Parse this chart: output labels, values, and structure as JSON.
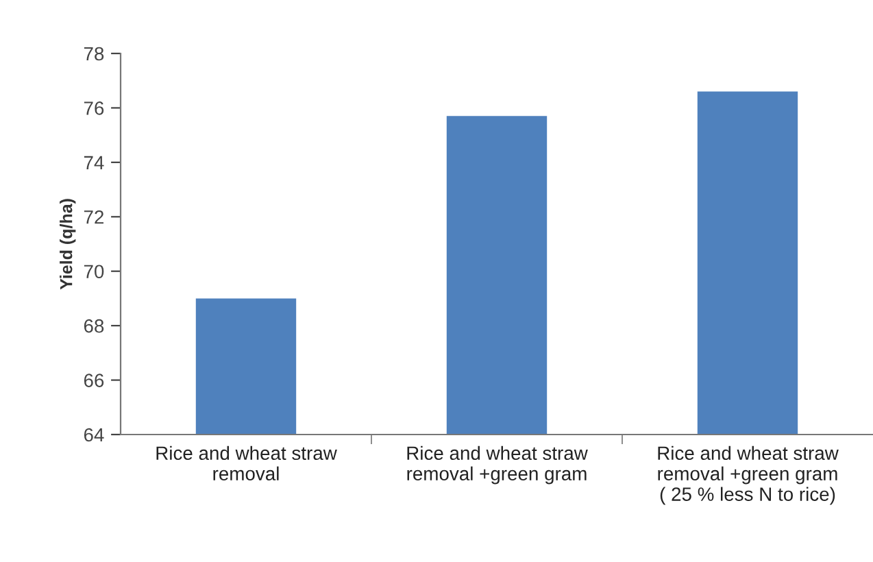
{
  "chart_data": {
    "type": "bar",
    "ylabel": "Yield (q/ha)",
    "categories": [
      "Rice and wheat straw\nremoval",
      "Rice and wheat straw\nremoval +green gram",
      "Rice and wheat straw\nremoval +green gram\n( 25 % less N to rice)"
    ],
    "values": [
      69.0,
      75.7,
      76.6
    ],
    "color": "#4f81bd",
    "ylim": [
      64,
      78
    ],
    "yticks": [
      64,
      66,
      68,
      70,
      72,
      74,
      76,
      78
    ],
    "grid": false,
    "legend": false
  }
}
